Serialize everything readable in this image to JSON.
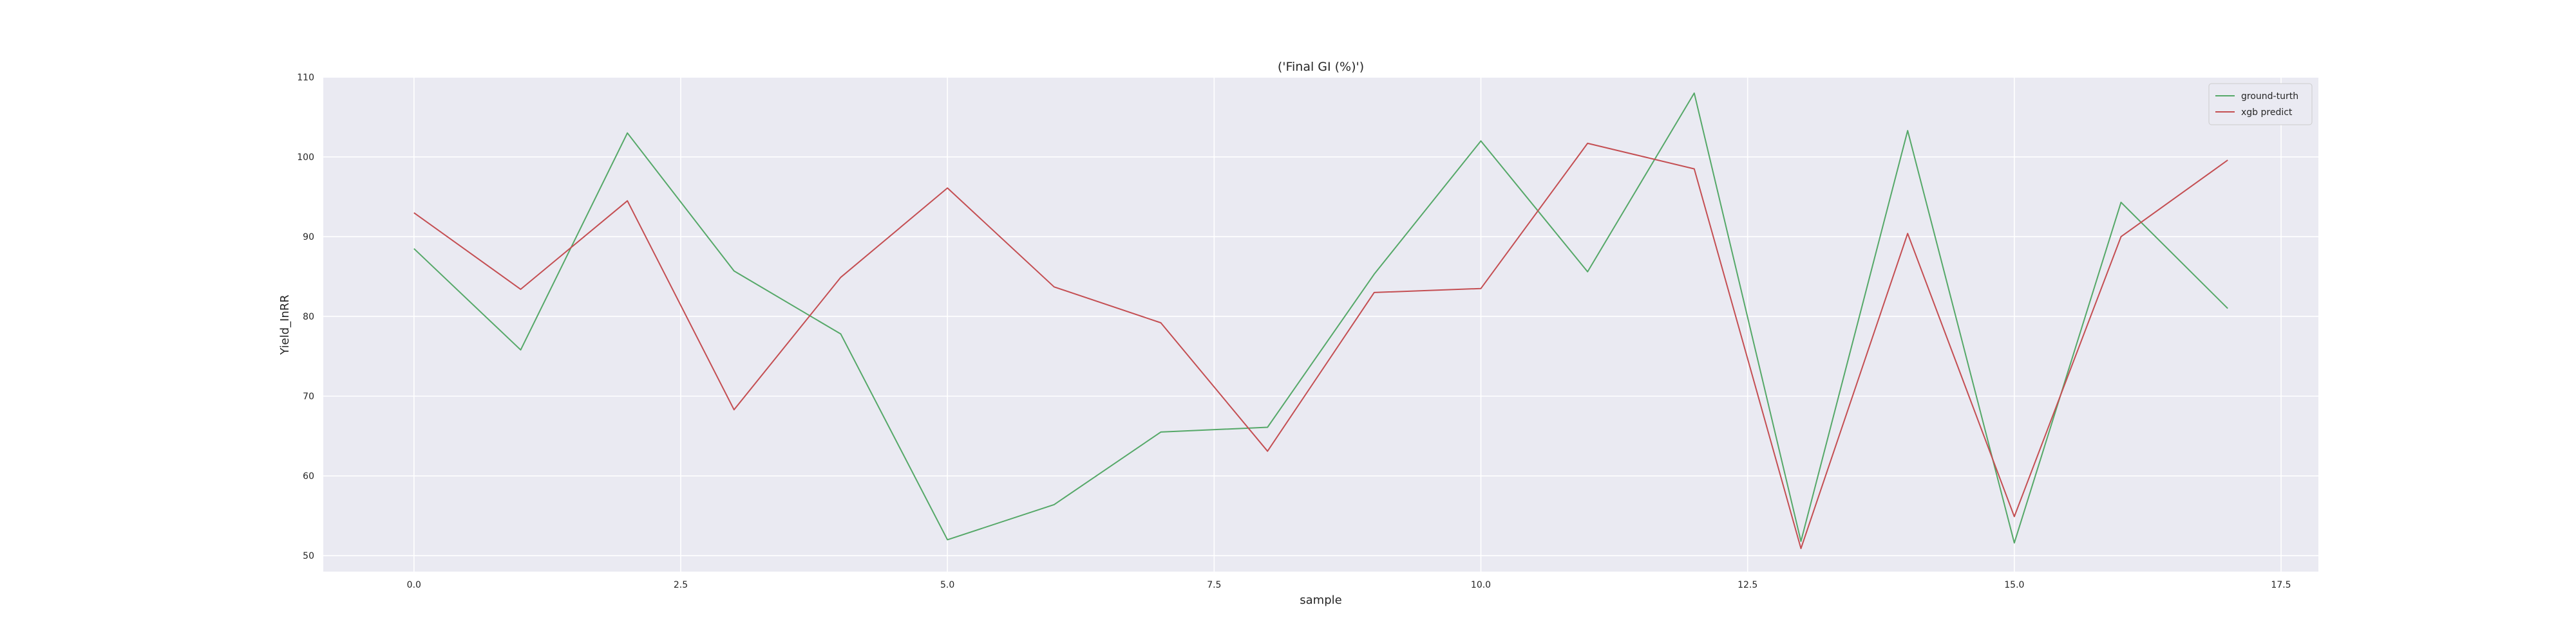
{
  "chart_data": {
    "type": "line",
    "title": "('Final GI (%)')",
    "xlabel": "sample",
    "ylabel": "Yield_InRR",
    "x": [
      0,
      1,
      2,
      3,
      4,
      5,
      6,
      7,
      8,
      9,
      10,
      11,
      12,
      13,
      14,
      15,
      16,
      17
    ],
    "xlim": [
      -0.85,
      17.85
    ],
    "ylim": [
      48,
      110
    ],
    "xticks": [
      0.0,
      2.5,
      5.0,
      7.5,
      10.0,
      12.5,
      15.0,
      17.5
    ],
    "xtick_labels": [
      "0.0",
      "2.5",
      "5.0",
      "7.5",
      "10.0",
      "12.5",
      "15.0",
      "17.5"
    ],
    "yticks": [
      50,
      60,
      70,
      80,
      90,
      100,
      110
    ],
    "ytick_labels": [
      "50",
      "60",
      "70",
      "80",
      "90",
      "100",
      "110"
    ],
    "grid": true,
    "background": "#eaeaf2",
    "legend_position": "top-right",
    "series": [
      {
        "name": "ground-turth",
        "color": "#55a868",
        "values": [
          88.5,
          75.8,
          103.0,
          85.7,
          77.8,
          52.0,
          56.4,
          65.5,
          66.1,
          85.3,
          102.0,
          85.6,
          108.0,
          51.8,
          103.3,
          51.6,
          94.3,
          81.0
        ]
      },
      {
        "name": "xgb predict",
        "color": "#c44e52",
        "values": [
          93.0,
          83.4,
          94.5,
          68.3,
          84.9,
          96.1,
          83.7,
          79.2,
          63.1,
          83.0,
          83.5,
          101.7,
          98.5,
          50.9,
          90.4,
          54.9,
          90.0,
          99.6
        ]
      }
    ]
  }
}
